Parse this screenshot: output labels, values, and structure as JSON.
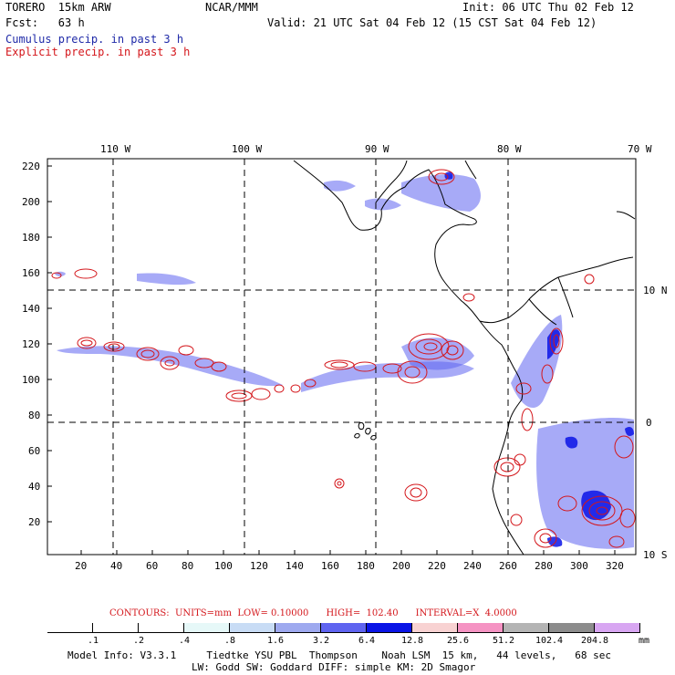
{
  "header": {
    "model": "TORERO  15km ARW",
    "center": "NCAR/MMM",
    "init": "Init: 06 UTC Thu 02 Feb 12",
    "fcst": "Fcst:   63 h",
    "valid": "Valid: 21 UTC Sat 04 Feb 12 (15 CST Sat 04 Feb 12)",
    "line_cumulus": "Cumulus precip. in past 3 h",
    "line_explicit": "Explicit precip. in past 3 h"
  },
  "map": {
    "top_longitudes": [
      "110 W",
      "100 W",
      "90 W",
      "80 W",
      "70 W"
    ],
    "right_latitudes": [
      "10 N",
      "0",
      "10 S"
    ],
    "y_ticks": [
      "220",
      "200",
      "180",
      "160",
      "140",
      "120",
      "100",
      "80",
      "60",
      "40",
      "20"
    ],
    "x_ticks": [
      "20",
      "40",
      "60",
      "80",
      "100",
      "120",
      "140",
      "160",
      "180",
      "200",
      "220",
      "240",
      "260",
      "280",
      "300",
      "320"
    ]
  },
  "contours": {
    "text": "CONTOURS:  UNITS=mm  LOW= 0.10000      HIGH=  102.40      INTERVAL=X  4.0000"
  },
  "legend": {
    "labels": [
      ".1",
      ".2",
      ".4",
      ".8",
      "1.6",
      "3.2",
      "6.4",
      "12.8",
      "25.6",
      "51.2",
      "102.4",
      "204.8",
      "mm"
    ],
    "colors": [
      "#ffffff",
      "#ffffff",
      "#ffffff",
      "#e6f8f8",
      "#c8dcf5",
      "#9ea9ef",
      "#5f64f0",
      "#0a14e6",
      "#f8d2d2",
      "#f593c3",
      "#b4b4b4",
      "#8c8c8c",
      "#d8a6f2"
    ]
  },
  "footer": {
    "line1": "Model Info: V3.3.1     Tiedtke YSU PBL  Thompson    Noah LSM  15 km,   44 levels,   68 sec",
    "line2": "LW: Godd SW: Goddard DIFF: simple KM: 2D Smagor"
  }
}
